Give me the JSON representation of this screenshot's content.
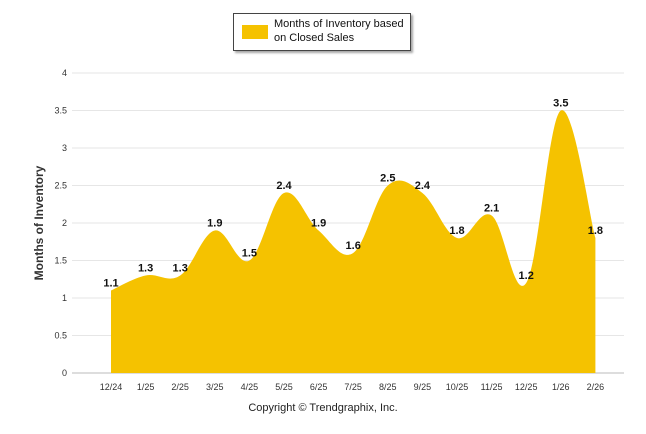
{
  "legend": {
    "label": "Months of Inventory based on Closed Sales",
    "color": "#f5c200"
  },
  "credit": "Copyright © Trendgraphix, Inc.",
  "chart_data": {
    "type": "area",
    "title": "",
    "xlabel": "",
    "ylabel": "Months of Inventory",
    "ylim": [
      0,
      4
    ],
    "yticks": [
      "0",
      "0.5",
      "1",
      "1.5",
      "2",
      "2.5",
      "3",
      "3.5",
      "4"
    ],
    "grid": true,
    "legend_position": "top-center",
    "categories": [
      "12/24",
      "1/25",
      "2/25",
      "3/25",
      "4/25",
      "5/25",
      "6/25",
      "7/25",
      "8/25",
      "9/25",
      "10/25",
      "11/25",
      "12/25",
      "1/26",
      "2/26"
    ],
    "series": [
      {
        "name": "Months of Inventory based on Closed Sales",
        "color": "#f5c200",
        "values": [
          1.1,
          1.3,
          1.3,
          1.9,
          1.5,
          2.4,
          1.9,
          1.6,
          2.5,
          2.4,
          1.8,
          2.1,
          1.2,
          3.5,
          1.8
        ],
        "labels": [
          "1.1",
          "1.3",
          "1.3",
          "1.9",
          "1.5",
          "2.4",
          "1.9",
          "1.6",
          "2.5",
          "2.4",
          "1.8",
          "2.1",
          "1.2",
          "3.5",
          "1.8"
        ]
      }
    ]
  }
}
